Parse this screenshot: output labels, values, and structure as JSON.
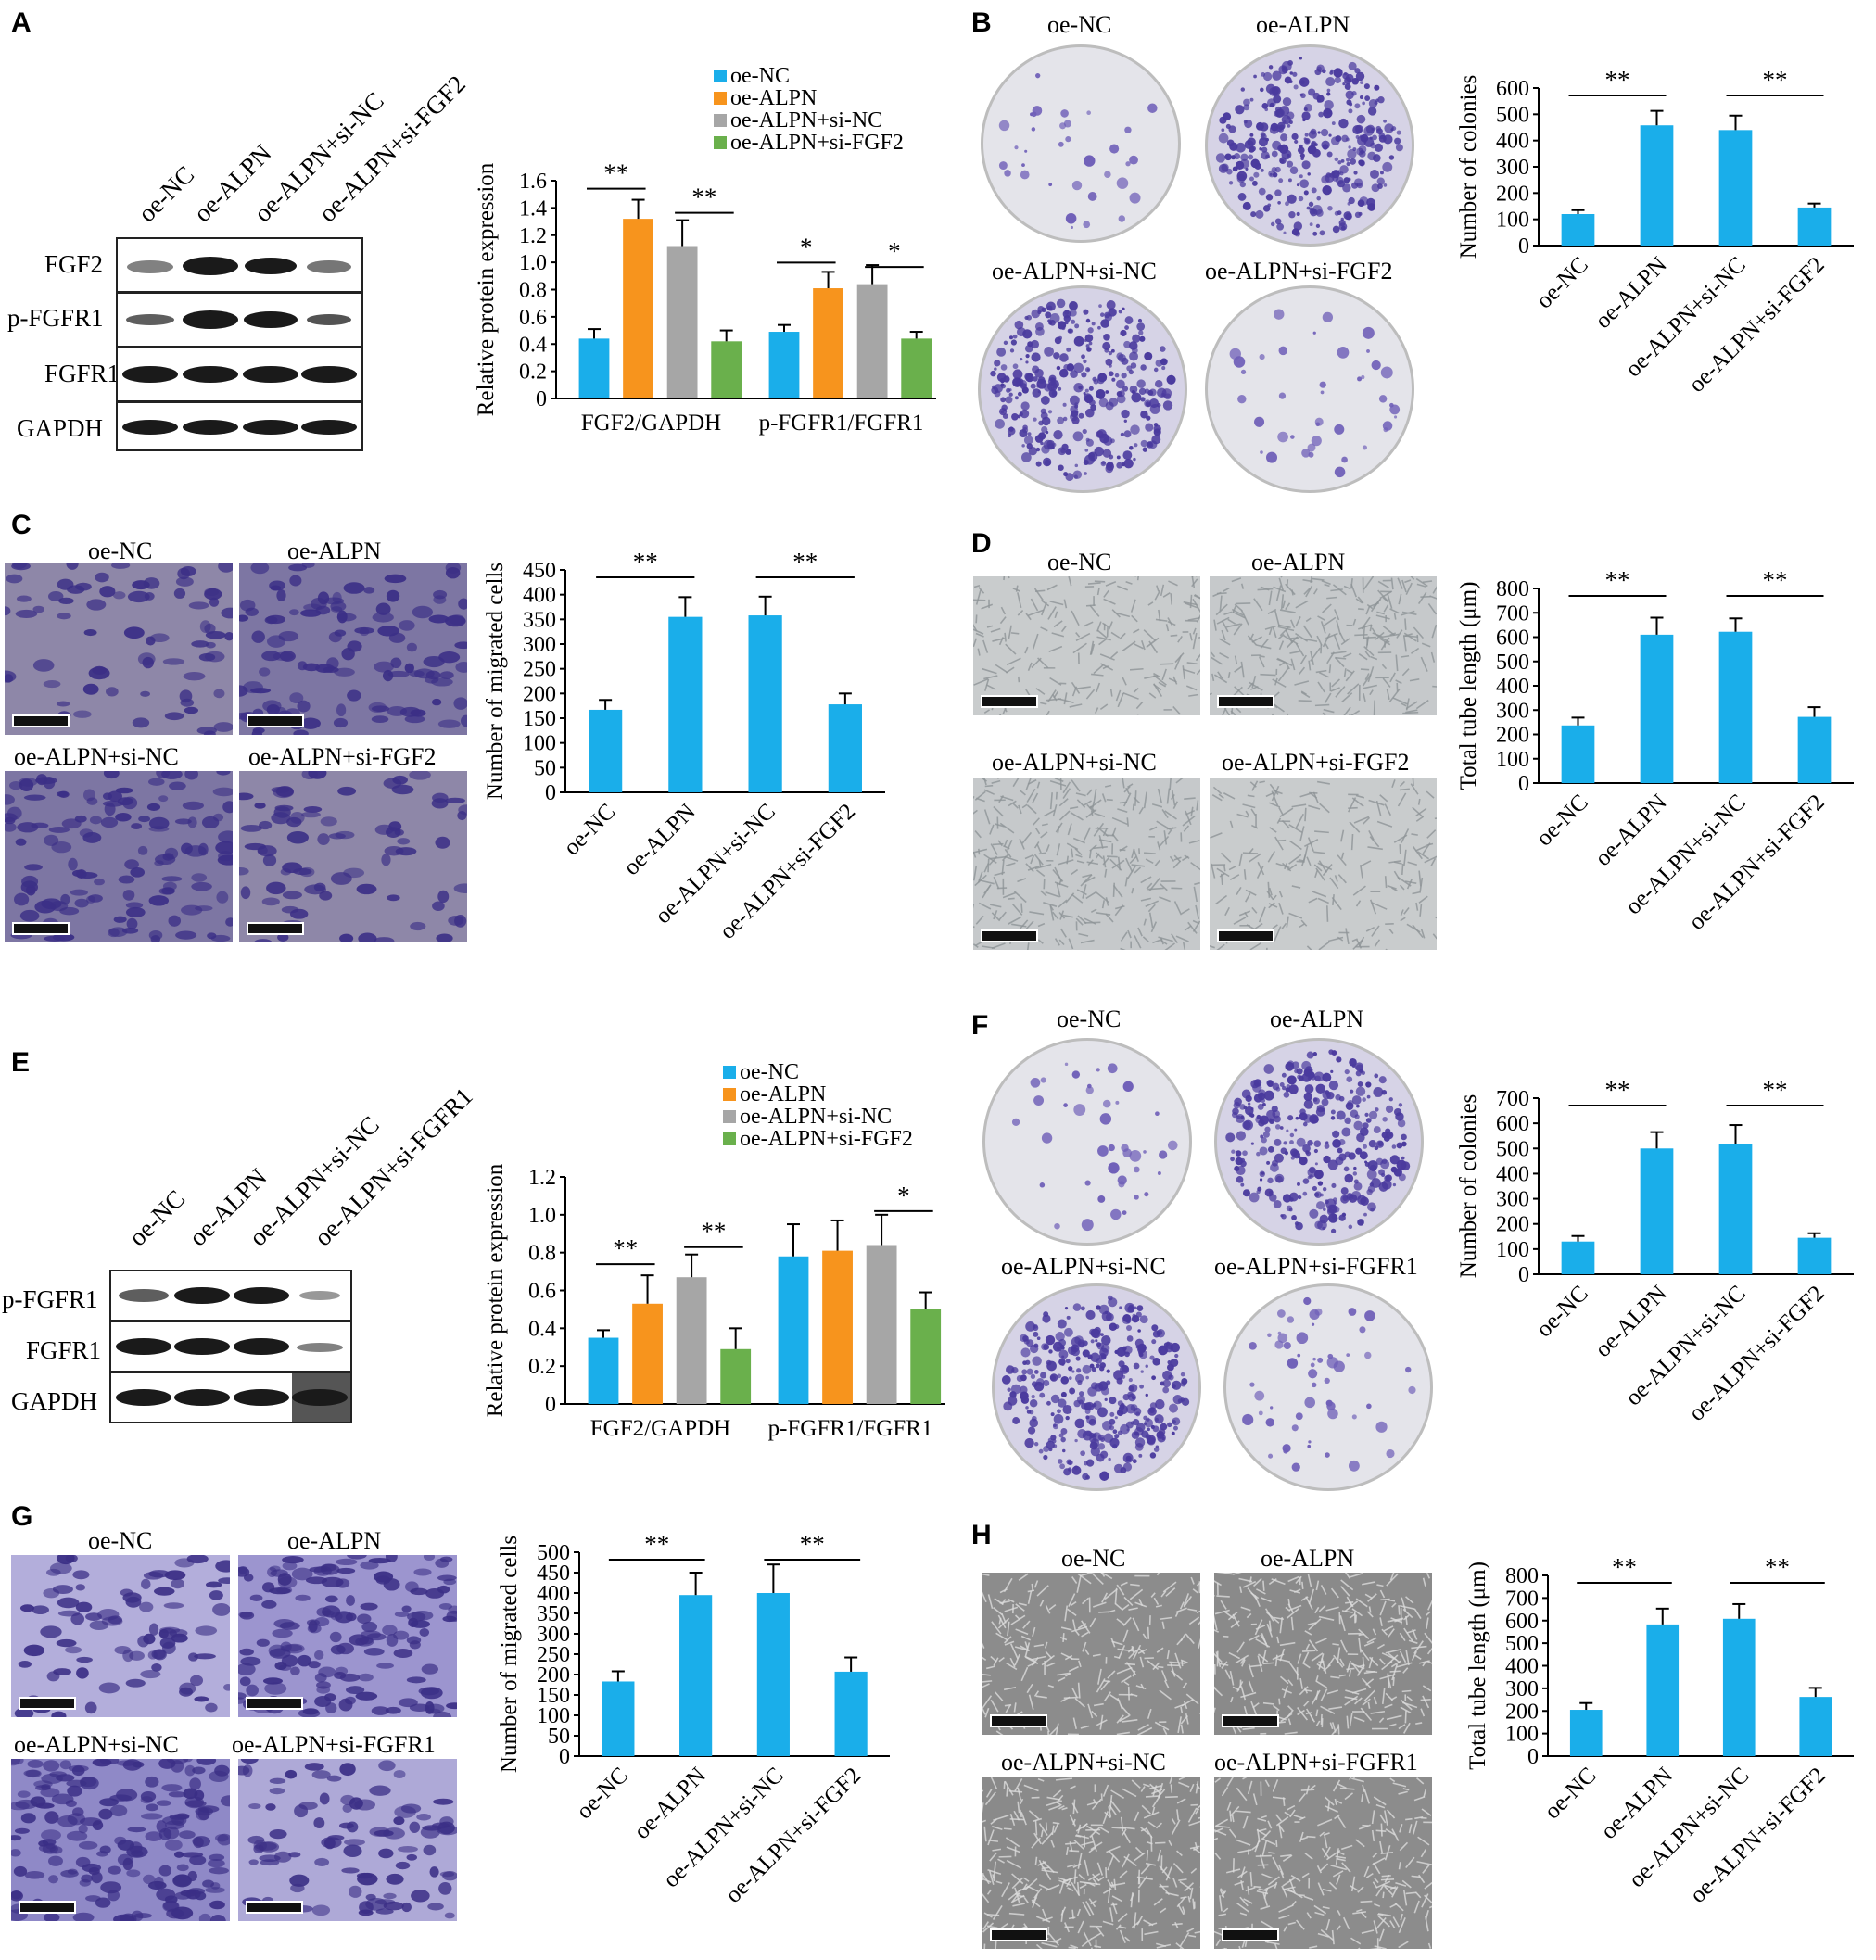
{
  "colors": {
    "oe_nc": "#1aaeea",
    "oe_alpn": "#f7941d",
    "si_nc": "#a6a6a6",
    "si_fgf2": "#6ab04c",
    "purple": "#4a3a9e"
  },
  "panels": {
    "A": "A",
    "B": "B",
    "C": "C",
    "D": "D",
    "E": "E",
    "F": "F",
    "G": "G",
    "H": "H"
  },
  "blot_A": {
    "lanes": [
      "oe-NC",
      "oe-ALPN",
      "oe-ALPN+si-NC",
      "oe-ALPN+si-FGF2"
    ],
    "rows": [
      "FGF2",
      "p-FGFR1",
      "FGFR1",
      "GAPDH"
    ]
  },
  "blot_E": {
    "lanes": [
      "oe-NC",
      "oe-ALPN",
      "oe-ALPN+si-NC",
      "oe-ALPN+si-FGFR1"
    ],
    "rows": [
      "p-FGFR1",
      "FGFR1",
      "GAPDH"
    ]
  },
  "images": {
    "B": [
      "oe-NC",
      "oe-ALPN",
      "oe-ALPN+si-NC",
      "oe-ALPN+si-FGF2"
    ],
    "C": [
      "oe-NC",
      "oe-ALPN",
      "oe-ALPN+si-NC",
      "oe-ALPN+si-FGF2"
    ],
    "D": [
      "oe-NC",
      "oe-ALPN",
      "oe-ALPN+si-NC",
      "oe-ALPN+si-FGF2"
    ],
    "F": [
      "oe-NC",
      "oe-ALPN",
      "oe-ALPN+si-NC",
      "oe-ALPN+si-FGFR1"
    ],
    "G": [
      "oe-NC",
      "oe-ALPN",
      "oe-ALPN+si-NC",
      "oe-ALPN+si-FGFR1"
    ],
    "H": [
      "oe-NC",
      "oe-ALPN",
      "oe-ALPN+si-NC",
      "oe-ALPN+si-FGFR1"
    ]
  },
  "chart_data": [
    {
      "id": "A",
      "type": "bar",
      "ylabel": "Relative protein expression",
      "ylim": [
        0,
        1.6
      ],
      "yticks": [
        0,
        0.2,
        0.4,
        0.6,
        0.8,
        1.0,
        1.2,
        1.4,
        1.6
      ],
      "groups": [
        "FGF2/GAPDH",
        "p-FGFR1/FGFR1"
      ],
      "series": [
        {
          "name": "oe-NC",
          "values": [
            0.44,
            0.49
          ],
          "err": [
            0.07,
            0.05
          ]
        },
        {
          "name": "oe-ALPN",
          "values": [
            1.32,
            0.81
          ],
          "err": [
            0.14,
            0.12
          ]
        },
        {
          "name": "oe-ALPN+si-NC",
          "values": [
            1.12,
            0.84
          ],
          "err": [
            0.19,
            0.14
          ]
        },
        {
          "name": "oe-ALPN+si-FGF2",
          "values": [
            0.42,
            0.44
          ],
          "err": [
            0.08,
            0.05
          ]
        }
      ],
      "sig": [
        [
          "**"
        ],
        [
          "**"
        ],
        [
          "*"
        ],
        [
          "*"
        ]
      ]
    },
    {
      "id": "B",
      "type": "bar",
      "ylabel": "Number of colonies",
      "ylim": [
        0,
        600
      ],
      "yticks": [
        0,
        100,
        200,
        300,
        400,
        500,
        600
      ],
      "categories": [
        "oe-NC",
        "oe-ALPN",
        "oe-ALPN+si-NC",
        "oe-ALPN+si-FGF2"
      ],
      "values": [
        120,
        458,
        440,
        145
      ],
      "err": [
        15,
        55,
        55,
        15
      ],
      "sig": [
        "**",
        "**"
      ]
    },
    {
      "id": "C",
      "type": "bar",
      "ylabel": "Number of migrated cells",
      "ylim": [
        0,
        450
      ],
      "yticks": [
        0,
        50,
        100,
        150,
        200,
        250,
        300,
        350,
        400,
        450
      ],
      "categories": [
        "oe-NC",
        "oe-ALPN",
        "oe-ALPN+si-NC",
        "oe-ALPN+si-FGF2"
      ],
      "values": [
        167,
        355,
        358,
        178
      ],
      "err": [
        20,
        40,
        38,
        22
      ],
      "sig": [
        "**",
        "**"
      ]
    },
    {
      "id": "D",
      "type": "bar",
      "ylabel": "Total tube length (μm)",
      "ylim": [
        0,
        800
      ],
      "yticks": [
        0,
        100,
        200,
        300,
        400,
        500,
        600,
        700,
        800
      ],
      "categories": [
        "oe-NC",
        "oe-ALPN",
        "oe-ALPN+si-NC",
        "oe-ALPN+si-FGF2"
      ],
      "values": [
        237,
        610,
        622,
        272
      ],
      "err": [
        32,
        70,
        55,
        40
      ],
      "sig": [
        "**",
        "**"
      ]
    },
    {
      "id": "E",
      "type": "bar",
      "ylabel": "Relative protein expression",
      "ylim": [
        0,
        1.2
      ],
      "yticks": [
        0,
        0.2,
        0.4,
        0.6,
        0.8,
        1.0,
        1.2
      ],
      "groups": [
        "FGF2/GAPDH",
        "p-FGFR1/FGFR1"
      ],
      "series": [
        {
          "name": "oe-NC",
          "values": [
            0.35,
            0.78
          ],
          "err": [
            0.04,
            0.17
          ]
        },
        {
          "name": "oe-ALPN",
          "values": [
            0.53,
            0.81
          ],
          "err": [
            0.15,
            0.16
          ]
        },
        {
          "name": "oe-ALPN+si-NC",
          "values": [
            0.67,
            0.84
          ],
          "err": [
            0.12,
            0.16
          ]
        },
        {
          "name": "oe-ALPN+si-FGF2",
          "values": [
            0.29,
            0.5
          ],
          "err": [
            0.11,
            0.09
          ]
        }
      ],
      "sig": [
        [
          "**"
        ],
        [
          "**"
        ],
        [
          "*"
        ]
      ]
    },
    {
      "id": "F",
      "type": "bar",
      "ylabel": "Number of colonies",
      "ylim": [
        0,
        700
      ],
      "yticks": [
        0,
        100,
        200,
        300,
        400,
        500,
        600,
        700
      ],
      "categories": [
        "oe-NC",
        "oe-ALPN",
        "oe-ALPN+si-NC",
        "oe-ALPN+si-FGF2"
      ],
      "values": [
        130,
        500,
        518,
        145
      ],
      "err": [
        22,
        65,
        75,
        18
      ],
      "sig": [
        "**",
        "**"
      ]
    },
    {
      "id": "G",
      "type": "bar",
      "ylabel": "Number of migrated cells",
      "ylim": [
        0,
        500
      ],
      "yticks": [
        0,
        50,
        100,
        150,
        200,
        250,
        300,
        350,
        400,
        450,
        500
      ],
      "categories": [
        "oe-NC",
        "oe-ALPN",
        "oe-ALPN+si-NC",
        "oe-ALPN+si-FGF2"
      ],
      "values": [
        183,
        395,
        400,
        207
      ],
      "err": [
        25,
        55,
        70,
        35
      ],
      "sig": [
        "**",
        "**"
      ]
    },
    {
      "id": "H",
      "type": "bar",
      "ylabel": "Total tube length (μm)",
      "ylim": [
        0,
        800
      ],
      "yticks": [
        0,
        100,
        200,
        300,
        400,
        500,
        600,
        700,
        800
      ],
      "categories": [
        "oe-NC",
        "oe-ALPN",
        "oe-ALPN+si-NC",
        "oe-ALPN+si-FGF2"
      ],
      "values": [
        205,
        583,
        608,
        262
      ],
      "err": [
        30,
        70,
        65,
        40
      ],
      "sig": [
        "**",
        "**"
      ]
    }
  ]
}
